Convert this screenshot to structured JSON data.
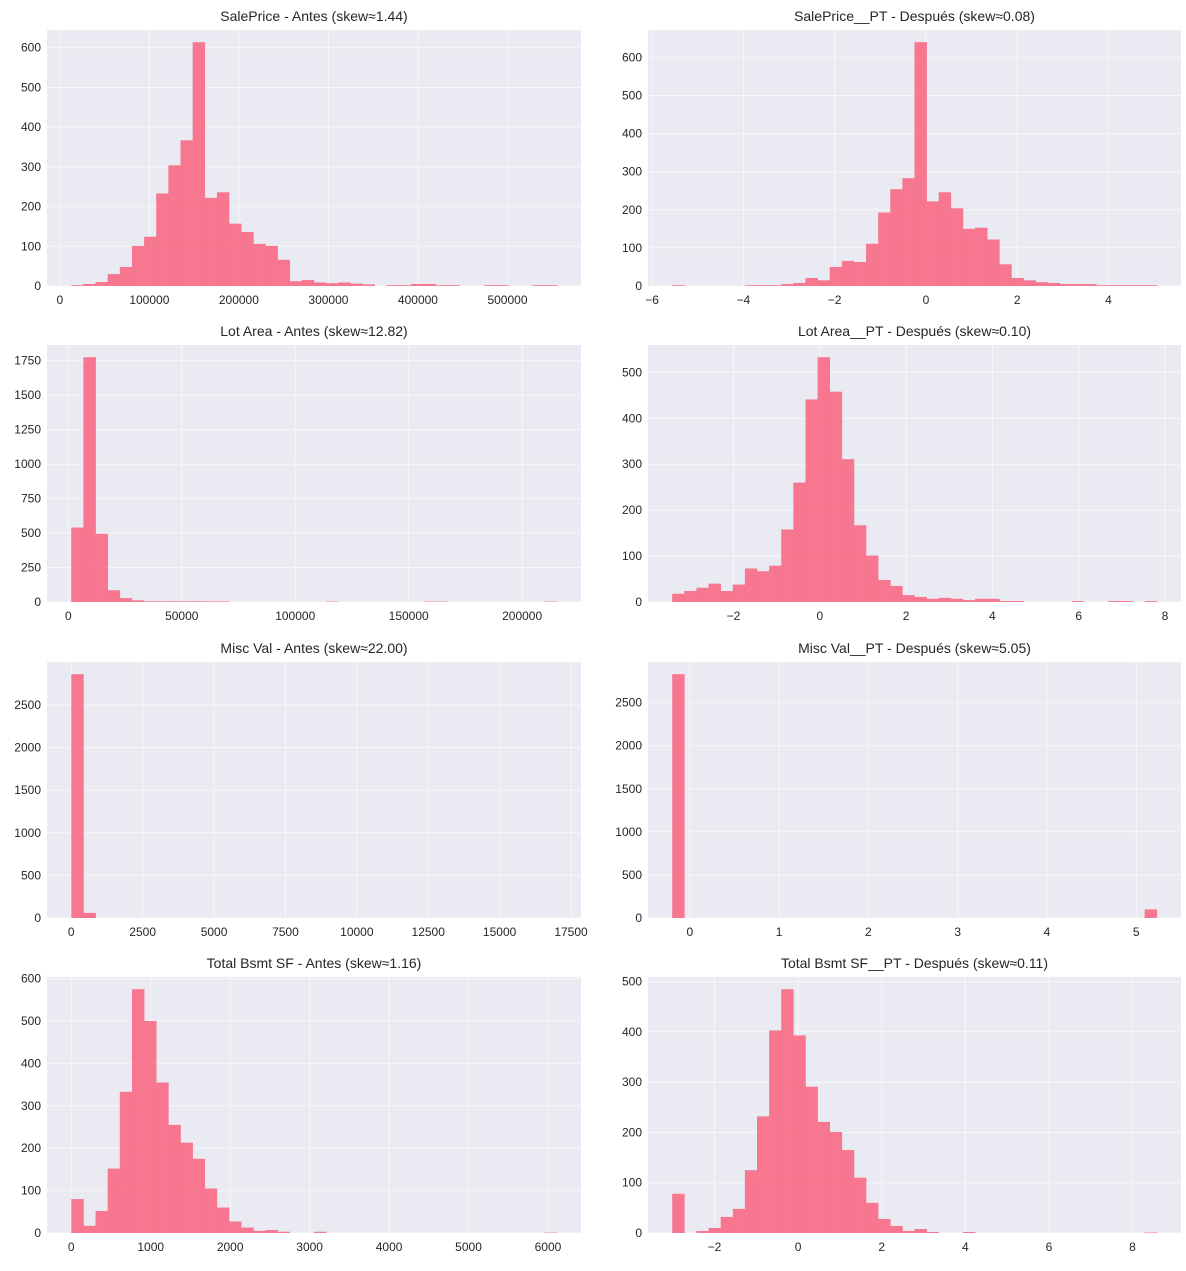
{
  "colors": {
    "bar": "#f77189",
    "axes_bg": "#eaeaf2",
    "grid": "#ffffff"
  },
  "chart_data": [
    {
      "type": "bar",
      "title": "SalePrice - Antes (skew≈1.44)",
      "bin_range": [
        12789,
        555000
      ],
      "counts": [
        2,
        5,
        10,
        30,
        48,
        101,
        124,
        233,
        304,
        367,
        614,
        222,
        236,
        157,
        136,
        106,
        101,
        66,
        12,
        15,
        9,
        7,
        9,
        6,
        4,
        0,
        2,
        2,
        5,
        5,
        2,
        2,
        0,
        0,
        2,
        2,
        0,
        0,
        2,
        2
      ],
      "xticks": [
        0,
        100000,
        200000,
        300000,
        400000,
        500000
      ],
      "xtick_labels": [
        "0",
        "100000",
        "200000",
        "300000",
        "400000",
        "500000"
      ],
      "yticks": [
        0,
        100,
        200,
        300,
        400,
        500,
        600
      ],
      "ytick_labels": [
        "0",
        "100",
        "200",
        "300",
        "400",
        "500",
        "600"
      ]
    },
    {
      "type": "bar",
      "title": "SalePrice__PT - Después (skew≈0.08)",
      "bin_range": [
        -5.56,
        5.06
      ],
      "counts": [
        2,
        0,
        0,
        0,
        0,
        0,
        2,
        2,
        2,
        5,
        8,
        21,
        15,
        50,
        66,
        63,
        111,
        193,
        254,
        283,
        640,
        222,
        246,
        204,
        150,
        153,
        122,
        57,
        21,
        15,
        10,
        8,
        5,
        5,
        5,
        2,
        2,
        2,
        2,
        2
      ],
      "xticks": [
        -6,
        -4,
        -2,
        0,
        2,
        4
      ],
      "xtick_labels": [
        "−6",
        "−4",
        "−2",
        "0",
        "2",
        "4"
      ],
      "yticks": [
        0,
        100,
        200,
        300,
        400,
        500,
        600
      ],
      "ytick_labels": [
        "0",
        "100",
        "200",
        "300",
        "400",
        "500",
        "600"
      ]
    },
    {
      "type": "bar",
      "title": "Lot Area - Antes (skew≈12.82)",
      "bin_range": [
        1300,
        215245
      ],
      "counts": [
        540,
        1775,
        495,
        85,
        28,
        12,
        5,
        5,
        5,
        5,
        5,
        4,
        4,
        0,
        0,
        0,
        0,
        0,
        0,
        0,
        0,
        3,
        0,
        0,
        0,
        0,
        0,
        0,
        0,
        3,
        3,
        0,
        0,
        0,
        0,
        0,
        0,
        0,
        0,
        3
      ],
      "xticks": [
        0,
        50000,
        100000,
        150000,
        200000
      ],
      "xtick_labels": [
        "0",
        "50000",
        "100000",
        "150000",
        "200000"
      ],
      "yticks": [
        0,
        250,
        500,
        750,
        1000,
        1250,
        1500,
        1750
      ],
      "ytick_labels": [
        "0",
        "250",
        "500",
        "750",
        "1000",
        "1250",
        "1500",
        "1750"
      ]
    },
    {
      "type": "bar",
      "title": "Lot Area__PT - Después (skew≈0.10)",
      "bin_range": [
        -3.42,
        7.81
      ],
      "counts": [
        18,
        24,
        31,
        40,
        24,
        38,
        73,
        67,
        79,
        158,
        260,
        441,
        533,
        458,
        311,
        167,
        101,
        48,
        35,
        15,
        11,
        7,
        9,
        7,
        4,
        7,
        7,
        2,
        2,
        0,
        0,
        0,
        0,
        2,
        0,
        0,
        2,
        2,
        0,
        2
      ],
      "xticks": [
        -2,
        0,
        2,
        4,
        6,
        8
      ],
      "xtick_labels": [
        "−2",
        "0",
        "2",
        "4",
        "6",
        "8"
      ],
      "yticks": [
        0,
        100,
        200,
        300,
        400,
        500
      ],
      "ytick_labels": [
        "0",
        "100",
        "200",
        "300",
        "400",
        "500"
      ]
    },
    {
      "type": "bar",
      "title": "Misc Val - Antes (skew≈22.00)",
      "bin_range": [
        0,
        17000
      ],
      "counts": [
        2860,
        60,
        0,
        0,
        0,
        0,
        0,
        0,
        0,
        0,
        0,
        0,
        0,
        0,
        0,
        0,
        0,
        0,
        0,
        0,
        0,
        0,
        0,
        0,
        0,
        0,
        0,
        0,
        0,
        0,
        0,
        0,
        0,
        0,
        0,
        0,
        0,
        0,
        0,
        0
      ],
      "xticks": [
        0,
        2500,
        5000,
        7500,
        10000,
        12500,
        15000,
        17500
      ],
      "xtick_labels": [
        "0",
        "2500",
        "5000",
        "7500",
        "10000",
        "12500",
        "15000",
        "17500"
      ],
      "yticks": [
        0,
        500,
        1000,
        1500,
        2000,
        2500
      ],
      "ytick_labels": [
        "0",
        "500",
        "1000",
        "1500",
        "2000",
        "2500"
      ]
    },
    {
      "type": "bar",
      "title": "Misc Val__PT - Después (skew≈5.05)",
      "bin_range": [
        -0.197,
        5.23
      ],
      "counts": [
        2830,
        0,
        0,
        0,
        0,
        0,
        0,
        0,
        0,
        0,
        0,
        0,
        0,
        0,
        0,
        0,
        0,
        0,
        0,
        0,
        0,
        0,
        0,
        0,
        0,
        0,
        0,
        0,
        0,
        0,
        0,
        0,
        0,
        0,
        0,
        0,
        0,
        0,
        0,
        100
      ],
      "xticks": [
        0,
        1,
        2,
        3,
        4,
        5
      ],
      "xtick_labels": [
        "0",
        "1",
        "2",
        "3",
        "4",
        "5"
      ],
      "yticks": [
        0,
        500,
        1000,
        1500,
        2000,
        2500
      ],
      "ytick_labels": [
        "0",
        "500",
        "1000",
        "1500",
        "2000",
        "2500"
      ]
    },
    {
      "type": "bar",
      "title": "Total Bsmt SF - Antes (skew≈1.16)",
      "bin_range": [
        0,
        6110
      ],
      "counts": [
        80,
        17,
        52,
        152,
        333,
        575,
        500,
        355,
        255,
        213,
        175,
        105,
        60,
        27,
        13,
        5,
        7,
        3,
        0,
        0,
        3,
        0,
        0,
        0,
        0,
        0,
        0,
        0,
        0,
        0,
        0,
        0,
        0,
        0,
        0,
        0,
        0,
        0,
        0,
        1
      ],
      "xticks": [
        0,
        1000,
        2000,
        3000,
        4000,
        5000,
        6000
      ],
      "xtick_labels": [
        "0",
        "1000",
        "2000",
        "3000",
        "4000",
        "5000",
        "6000"
      ],
      "yticks": [
        0,
        100,
        200,
        300,
        400,
        500,
        600
      ],
      "ytick_labels": [
        "0",
        "100",
        "200",
        "300",
        "400",
        "500",
        "600"
      ]
    },
    {
      "type": "bar",
      "title": "Total Bsmt SF__PT - Después (skew≈0.11)",
      "bin_range": [
        -3.01,
        8.58
      ],
      "counts": [
        78,
        0,
        4,
        10,
        32,
        48,
        125,
        232,
        403,
        485,
        393,
        291,
        221,
        201,
        165,
        110,
        60,
        28,
        14,
        4,
        8,
        2,
        0,
        0,
        2,
        0,
        0,
        0,
        0,
        0,
        0,
        0,
        0,
        0,
        0,
        0,
        0,
        0,
        0,
        1
      ],
      "xticks": [
        -2,
        0,
        2,
        4,
        6,
        8
      ],
      "xtick_labels": [
        "−2",
        "0",
        "2",
        "4",
        "6",
        "8"
      ],
      "yticks": [
        0,
        100,
        200,
        300,
        400,
        500
      ],
      "ytick_labels": [
        "0",
        "100",
        "200",
        "300",
        "400",
        "500"
      ]
    }
  ]
}
